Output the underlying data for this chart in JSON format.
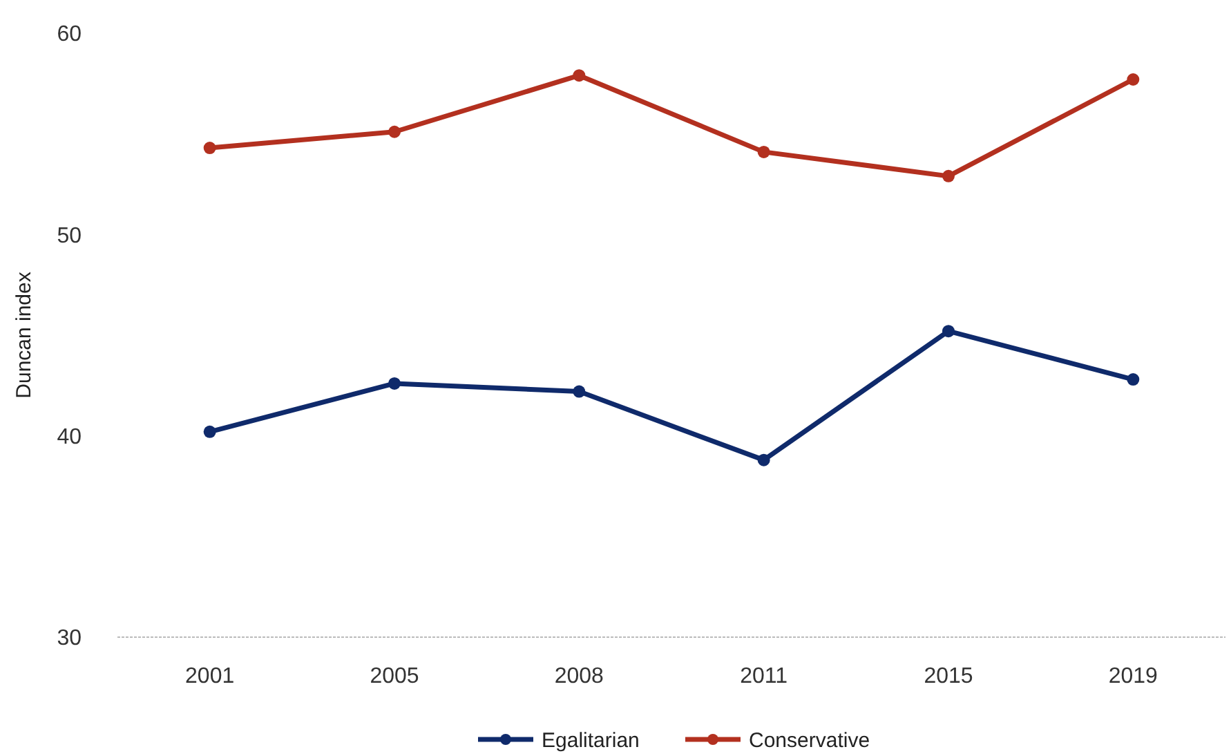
{
  "chart_data": {
    "type": "line",
    "ylabel": "Duncan index",
    "categories": [
      "2001",
      "2005",
      "2008",
      "2011",
      "2015",
      "2019"
    ],
    "series": [
      {
        "name": "Egalitarian",
        "color": "#0f2a6b",
        "values": [
          40.2,
          42.6,
          42.2,
          38.8,
          45.2,
          42.8
        ]
      },
      {
        "name": "Conservative",
        "color": "#b3301f",
        "values": [
          54.3,
          55.1,
          57.9,
          54.1,
          52.9,
          57.7
        ]
      }
    ],
    "ylim": [
      30,
      60
    ],
    "yticks": [
      30,
      40,
      50,
      60
    ],
    "grid": false,
    "legend": "bottom",
    "marker": "circle",
    "line_style": "solid"
  }
}
